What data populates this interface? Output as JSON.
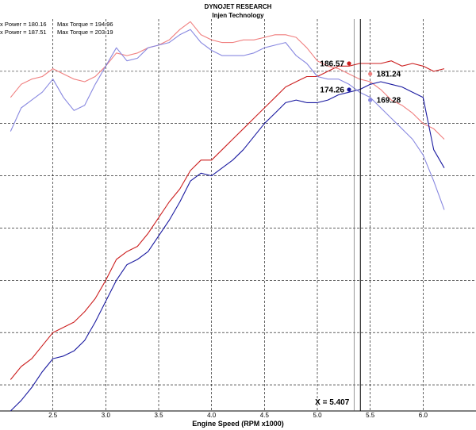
{
  "header": {
    "title": "DYNOJET RESEARCH",
    "subtitle": "Injen Technology"
  },
  "stats": [
    {
      "power_label": "x Power = 180.16",
      "torque_label": "Max Torque = 194.96"
    },
    {
      "power_label": "x Power = 187.51",
      "torque_label": "Max Torque = 203.19"
    }
  ],
  "cursor": {
    "label": "X = 5.407",
    "x": 5.407
  },
  "chart_data": {
    "type": "line",
    "title": "DYNOJET RESEARCH",
    "subtitle": "Injen Technology",
    "xlabel": "Engine Speed (RPM x1000)",
    "ylabel": "",
    "xlim": [
      2.0,
      6.5
    ],
    "ylim": [
      80,
      230
    ],
    "x_ticks": [
      "2.5",
      "3.0",
      "3.5",
      "4.0",
      "4.5",
      "5.0",
      "5.5",
      "6.0"
    ],
    "grid": true,
    "series": [
      {
        "color": "#cc1f1f",
        "points": [
          [
            2.1,
            92
          ],
          [
            2.2,
            97
          ],
          [
            2.3,
            100
          ],
          [
            2.4,
            105
          ],
          [
            2.5,
            110
          ],
          [
            2.6,
            112
          ],
          [
            2.7,
            114
          ],
          [
            2.8,
            118
          ],
          [
            2.9,
            123
          ],
          [
            3.0,
            130
          ],
          [
            3.1,
            138
          ],
          [
            3.2,
            141
          ],
          [
            3.3,
            143
          ],
          [
            3.4,
            148
          ],
          [
            3.5,
            154
          ],
          [
            3.6,
            160
          ],
          [
            3.7,
            165
          ],
          [
            3.8,
            172
          ],
          [
            3.9,
            176
          ],
          [
            4.0,
            176
          ],
          [
            4.1,
            180
          ],
          [
            4.2,
            184
          ],
          [
            4.3,
            188
          ],
          [
            4.4,
            192
          ],
          [
            4.5,
            196
          ],
          [
            4.6,
            200
          ],
          [
            4.7,
            204
          ],
          [
            4.8,
            206
          ],
          [
            4.9,
            208
          ],
          [
            5.0,
            208
          ],
          [
            5.1,
            210
          ],
          [
            5.2,
            212
          ],
          [
            5.3,
            212
          ],
          [
            5.4,
            213
          ],
          [
            5.5,
            213
          ],
          [
            5.6,
            213
          ],
          [
            5.7,
            214
          ],
          [
            5.8,
            212
          ],
          [
            5.9,
            213
          ],
          [
            6.0,
            212
          ],
          [
            6.1,
            210
          ],
          [
            6.2,
            211
          ]
        ]
      },
      {
        "color": "#f07f7f",
        "points": [
          [
            2.1,
            200
          ],
          [
            2.2,
            205
          ],
          [
            2.3,
            207
          ],
          [
            2.4,
            208
          ],
          [
            2.5,
            211
          ],
          [
            2.6,
            209
          ],
          [
            2.7,
            207
          ],
          [
            2.8,
            206
          ],
          [
            2.9,
            208
          ],
          [
            3.0,
            212
          ],
          [
            3.1,
            217
          ],
          [
            3.2,
            216
          ],
          [
            3.3,
            217
          ],
          [
            3.4,
            219
          ],
          [
            3.5,
            220
          ],
          [
            3.6,
            222
          ],
          [
            3.7,
            226
          ],
          [
            3.8,
            229
          ],
          [
            3.9,
            224
          ],
          [
            4.0,
            222
          ],
          [
            4.1,
            221
          ],
          [
            4.2,
            221
          ],
          [
            4.3,
            222
          ],
          [
            4.4,
            222
          ],
          [
            4.5,
            223
          ],
          [
            4.6,
            224
          ],
          [
            4.7,
            224
          ],
          [
            4.8,
            223
          ],
          [
            4.9,
            219
          ],
          [
            5.0,
            214
          ],
          [
            5.1,
            212
          ],
          [
            5.2,
            211
          ],
          [
            5.3,
            209
          ],
          [
            5.4,
            207
          ],
          [
            5.5,
            206
          ],
          [
            5.6,
            203
          ],
          [
            5.7,
            199
          ],
          [
            5.8,
            197
          ],
          [
            5.9,
            194
          ],
          [
            6.0,
            190
          ],
          [
            6.1,
            188
          ],
          [
            6.2,
            184
          ]
        ]
      },
      {
        "color": "#1a1aa0",
        "points": [
          [
            2.1,
            80
          ],
          [
            2.2,
            84
          ],
          [
            2.3,
            89
          ],
          [
            2.4,
            95
          ],
          [
            2.5,
            100
          ],
          [
            2.6,
            101
          ],
          [
            2.7,
            103
          ],
          [
            2.8,
            107
          ],
          [
            2.9,
            114
          ],
          [
            3.0,
            122
          ],
          [
            3.1,
            130
          ],
          [
            3.2,
            136
          ],
          [
            3.3,
            138
          ],
          [
            3.4,
            141
          ],
          [
            3.5,
            147
          ],
          [
            3.6,
            153
          ],
          [
            3.7,
            160
          ],
          [
            3.8,
            168
          ],
          [
            3.9,
            171
          ],
          [
            4.0,
            170
          ],
          [
            4.1,
            173
          ],
          [
            4.2,
            176
          ],
          [
            4.3,
            180
          ],
          [
            4.4,
            185
          ],
          [
            4.5,
            190
          ],
          [
            4.6,
            194
          ],
          [
            4.7,
            198
          ],
          [
            4.8,
            199
          ],
          [
            4.9,
            198
          ],
          [
            5.0,
            198
          ],
          [
            5.1,
            199
          ],
          [
            5.2,
            201
          ],
          [
            5.3,
            202
          ],
          [
            5.4,
            203
          ],
          [
            5.5,
            205
          ],
          [
            5.6,
            206
          ],
          [
            5.7,
            205
          ],
          [
            5.8,
            204
          ],
          [
            5.9,
            202
          ],
          [
            6.0,
            200
          ],
          [
            6.1,
            180
          ],
          [
            6.2,
            173
          ]
        ]
      },
      {
        "color": "#8888e0",
        "points": [
          [
            2.1,
            187
          ],
          [
            2.2,
            196
          ],
          [
            2.3,
            199
          ],
          [
            2.4,
            202
          ],
          [
            2.5,
            207
          ],
          [
            2.6,
            200
          ],
          [
            2.7,
            195
          ],
          [
            2.8,
            197
          ],
          [
            2.9,
            205
          ],
          [
            3.0,
            212
          ],
          [
            3.1,
            219
          ],
          [
            3.2,
            214
          ],
          [
            3.3,
            215
          ],
          [
            3.4,
            219
          ],
          [
            3.5,
            220
          ],
          [
            3.6,
            221
          ],
          [
            3.7,
            224
          ],
          [
            3.8,
            226
          ],
          [
            3.9,
            221
          ],
          [
            4.0,
            218
          ],
          [
            4.1,
            216
          ],
          [
            4.2,
            216
          ],
          [
            4.3,
            216
          ],
          [
            4.4,
            217
          ],
          [
            4.5,
            219
          ],
          [
            4.6,
            220
          ],
          [
            4.7,
            221
          ],
          [
            4.8,
            216
          ],
          [
            4.9,
            213
          ],
          [
            5.0,
            208
          ],
          [
            5.1,
            207
          ],
          [
            5.2,
            207
          ],
          [
            5.3,
            205
          ],
          [
            5.4,
            202
          ],
          [
            5.5,
            200
          ],
          [
            5.6,
            196
          ],
          [
            5.7,
            192
          ],
          [
            5.8,
            188
          ],
          [
            5.9,
            184
          ],
          [
            6.0,
            178
          ],
          [
            6.1,
            168
          ],
          [
            6.2,
            157
          ]
        ]
      }
    ],
    "markers": [
      {
        "label": "186.57",
        "x": 5.3,
        "y": 213,
        "color": "#cc1f1f",
        "side": "left"
      },
      {
        "label": "181.24",
        "x": 5.5,
        "y": 209,
        "color": "#f07f7f",
        "side": "right"
      },
      {
        "label": "174.26",
        "x": 5.3,
        "y": 203,
        "color": "#1a1aa0",
        "side": "left"
      },
      {
        "label": "169.28",
        "x": 5.5,
        "y": 199,
        "color": "#8888e0",
        "side": "right"
      }
    ]
  }
}
